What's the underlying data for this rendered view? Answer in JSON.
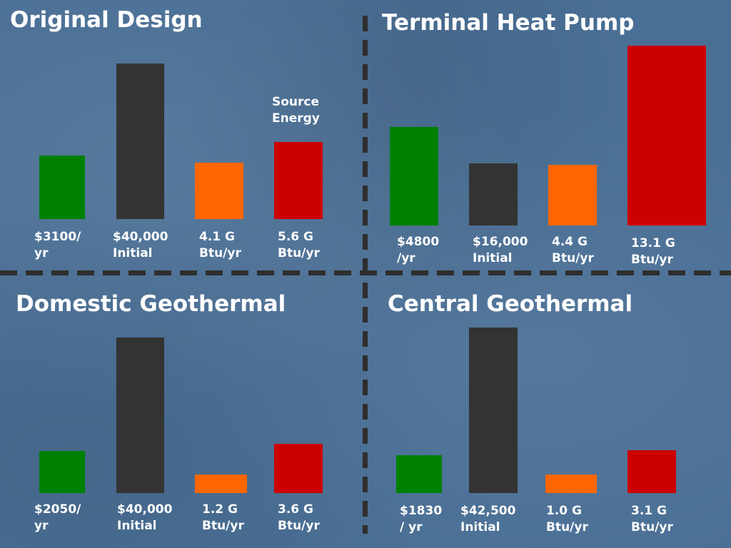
{
  "colors": {
    "background": "#4a6f95",
    "cost": "#008000",
    "initial": "#333333",
    "site_energy": "#ff6600",
    "source_energy": "#cc0000",
    "text": "#ffffff"
  },
  "chart_data": [
    {
      "type": "bar",
      "title": "Original Design",
      "annotation": "Source\nEnergy",
      "categories": [
        "$3100/\nyr",
        "$40,000\nInitial",
        "4.1 G\nBtu/yr",
        "5.6 G\nBtu/yr"
      ],
      "values": [
        3100,
        40000,
        4.1,
        5.6
      ],
      "units": [
        "$/yr",
        "$",
        "G Btu/yr",
        "G Btu/yr"
      ]
    },
    {
      "type": "bar",
      "title": "Terminal Heat Pump",
      "categories": [
        "$4800\n/yr",
        "$16,000\nInitial",
        "4.4 G\nBtu/yr",
        "13.1 G\nBtu/yr"
      ],
      "values": [
        4800,
        16000,
        4.4,
        13.1
      ],
      "units": [
        "$/yr",
        "$",
        "G Btu/yr",
        "G Btu/yr"
      ]
    },
    {
      "type": "bar",
      "title": "Domestic Geothermal",
      "categories": [
        "$2050/\nyr",
        "$40,000\nInitial",
        "1.2 G\nBtu/yr",
        "3.6 G\nBtu/yr"
      ],
      "values": [
        2050,
        40000,
        1.2,
        3.6
      ],
      "units": [
        "$/yr",
        "$",
        "G Btu/yr",
        "G Btu/yr"
      ]
    },
    {
      "type": "bar",
      "title": "Central Geothermal",
      "categories": [
        "$1830\n/ yr",
        "$42,500\nInitial",
        "1.0 G\nBtu/yr",
        "3.1 G\nBtu/yr"
      ],
      "values": [
        1830,
        42500,
        1.0,
        3.1
      ],
      "units": [
        "$/yr",
        "$",
        "G Btu/yr",
        "G Btu/yr"
      ]
    }
  ]
}
